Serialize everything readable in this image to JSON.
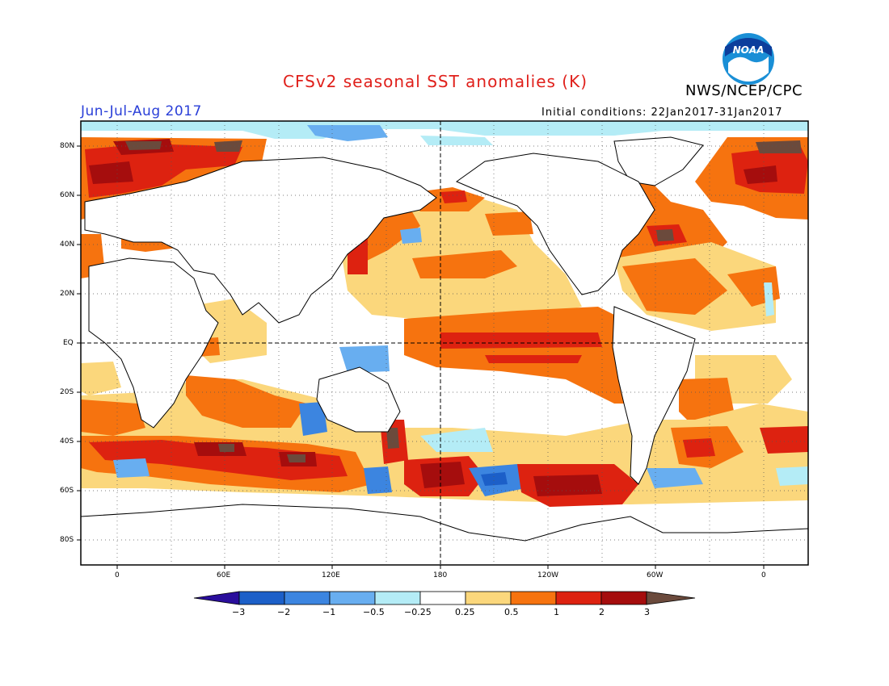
{
  "title": "CFSv2 seasonal SST anomalies (K)",
  "period": "Jun-Jul-Aug 2017",
  "agency": "NWS/NCEP/CPC",
  "initial_conditions": "Initial conditions: 22Jan2017-31Jan2017",
  "logo_text": "NOAA",
  "colors": {
    "title": "#e0201b",
    "period": "#2a3fd8",
    "land_outline": "#000000",
    "frame": "#000000"
  },
  "map": {
    "lat_labels": [
      "80N",
      "60N",
      "40N",
      "20N",
      "EQ",
      "20S",
      "40S",
      "60S",
      "80S"
    ],
    "lon_labels": [
      "0",
      "60E",
      "120E",
      "180",
      "120W",
      "60W",
      "0"
    ],
    "center_longitude": "180",
    "grid": "dotted, 30° dashed lines at EQ and 180"
  },
  "colorbar": {
    "labels": [
      "−3",
      "−2",
      "−1",
      "−0.5",
      "−0.25",
      "0.25",
      "0.5",
      "1",
      "2",
      "3"
    ],
    "colors": [
      "#2a0e9c",
      "#1c5fc8",
      "#3c85e0",
      "#68aef0",
      "#b4ecf6",
      "#ffffff",
      "#fbd77c",
      "#f6730f",
      "#dd2210",
      "#a50d0d",
      "#6b4a3c"
    ]
  }
}
